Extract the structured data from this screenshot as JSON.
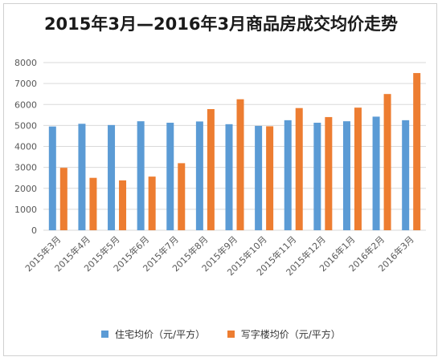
{
  "colors": {
    "residential": "#5b9bd5",
    "office": "#ed7d31",
    "grid": "#d9d9d9",
    "axis_text": "#595959"
  },
  "chart_data": {
    "type": "bar",
    "title": "2015年3月—2016年3月商品房成交均价走势",
    "xlabel": "",
    "ylabel": "",
    "ylim": [
      0,
      8000
    ],
    "yticks": [
      0,
      1000,
      2000,
      3000,
      4000,
      5000,
      6000,
      7000,
      8000
    ],
    "grid": true,
    "legend_position": "bottom",
    "categories": [
      "2015年3月",
      "2015年4月",
      "2015年5月",
      "2015年6月",
      "2015年7月",
      "2015年8月",
      "2015年9月",
      "2015年10月",
      "2015年11月",
      "2015年12月",
      "2016年1月",
      "2016年2月",
      "2016年3月"
    ],
    "series": [
      {
        "name": "住宅均价（元/平方）",
        "values": [
          4950,
          5080,
          5020,
          5200,
          5130,
          5190,
          5060,
          4980,
          5250,
          5130,
          5200,
          5420,
          5250
        ]
      },
      {
        "name": "写字楼均价（元/平方）",
        "values": [
          2980,
          2500,
          2380,
          2560,
          3200,
          5780,
          6250,
          4960,
          5830,
          5400,
          5850,
          6500,
          7500
        ]
      }
    ]
  }
}
